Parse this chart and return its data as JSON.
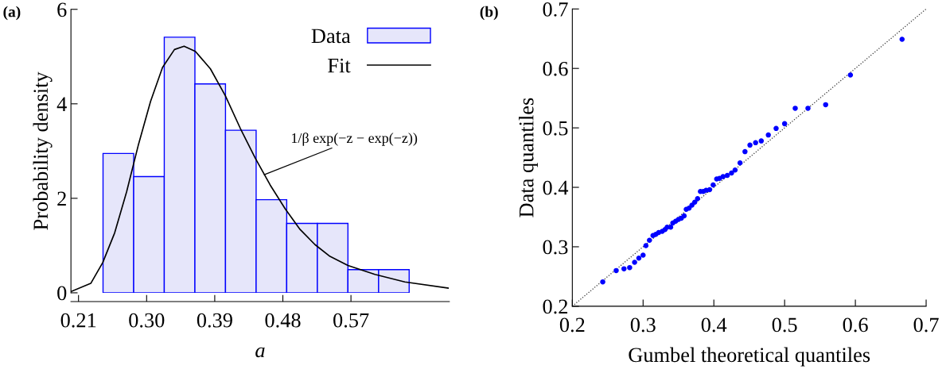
{
  "chart_data": [
    {
      "type": "histogram",
      "title": "(a)",
      "xlabel": "a",
      "ylabel": "Probability density",
      "xlim": [
        0.2,
        0.7
      ],
      "xticks": [
        0.21,
        {
          "value": 0.3,
          "label": "0.30"
        },
        0.39,
        0.48,
        0.57
      ],
      "ylim": [
        0,
        6
      ],
      "yticks": [
        0,
        2,
        4,
        6
      ],
      "legend": "top right",
      "grid": false,
      "series": [
        {
          "name": "Data",
          "color": "#e6e6fa",
          "bins": [
            0.2424,
            0.2829,
            0.3233,
            0.3638,
            0.4042,
            0.4447,
            0.4851,
            0.5256,
            0.566,
            0.6065,
            0.6469
          ],
          "values": [
            2.95,
            2.46,
            5.41,
            4.42,
            3.44,
            1.97,
            1.47,
            1.47,
            0.49,
            0.49
          ]
        },
        {
          "name": "Fit",
          "type": "line",
          "color": "#000000",
          "line_style": "solid",
          "marker": "none",
          "x": [
            0.2005,
            0.2262,
            0.242,
            0.2578,
            0.2736,
            0.2894,
            0.3052,
            0.321,
            0.3368,
            0.3495,
            0.3644,
            0.3843,
            0.404,
            0.4238,
            0.4436,
            0.4633,
            0.483,
            0.5028,
            0.5225,
            0.5423,
            0.566,
            0.6016,
            0.6411,
            0.6984
          ],
          "values": [
            0.03,
            0.2,
            0.64,
            1.27,
            2.14,
            3.15,
            4.05,
            4.77,
            5.15,
            5.22,
            5.11,
            4.74,
            4.17,
            3.48,
            2.85,
            2.28,
            1.78,
            1.34,
            1.02,
            0.77,
            0.58,
            0.39,
            0.23,
            0.1
          ]
        }
      ],
      "annotations": [
        {
          "text": "1/β exp(−z − exp(−z))",
          "x": 0.4554,
          "y": 2.5
        }
      ]
    },
    {
      "type": "scatter",
      "title": "(b)",
      "xlabel": "Gumbel theoretical quantiles",
      "ylabel": "Data quantiles",
      "xlim": [
        0.2,
        0.7
      ],
      "xticks": [
        0.2,
        0.3,
        0.4,
        0.5,
        0.6,
        0.7
      ],
      "ylim": [
        0.2,
        0.7
      ],
      "yticks": [
        0.2,
        0.3,
        0.4,
        0.5,
        0.6,
        0.7
      ],
      "legend": false,
      "grid": false,
      "series": [
        {
          "color": "#0000ff",
          "marker": "circle",
          "x": [
            0.243,
            0.262,
            0.273,
            0.281,
            0.288,
            0.294,
            0.3,
            0.304,
            0.309,
            0.314,
            0.318,
            0.322,
            0.327,
            0.331,
            0.334,
            0.339,
            0.342,
            0.346,
            0.35,
            0.354,
            0.358,
            0.361,
            0.365,
            0.369,
            0.373,
            0.377,
            0.381,
            0.385,
            0.389,
            0.394,
            0.399,
            0.404,
            0.408,
            0.413,
            0.419,
            0.425,
            0.43,
            0.437,
            0.444,
            0.451,
            0.459,
            0.467,
            0.477,
            0.488,
            0.5,
            0.515,
            0.533,
            0.558,
            0.593,
            0.666
          ],
          "values": [
            0.241,
            0.26,
            0.263,
            0.265,
            0.274,
            0.281,
            0.286,
            0.302,
            0.311,
            0.319,
            0.321,
            0.324,
            0.326,
            0.329,
            0.333,
            0.333,
            0.34,
            0.343,
            0.346,
            0.348,
            0.352,
            0.363,
            0.365,
            0.37,
            0.375,
            0.381,
            0.393,
            0.393,
            0.395,
            0.396,
            0.404,
            0.414,
            0.415,
            0.418,
            0.42,
            0.424,
            0.429,
            0.441,
            0.46,
            0.471,
            0.475,
            0.478,
            0.488,
            0.499,
            0.507,
            0.533,
            0.533,
            0.539,
            0.589,
            0.649
          ]
        },
        {
          "type": "line",
          "color": "#333333",
          "line_style": "dotted",
          "marker": "none",
          "x": [
            0.2,
            0.7
          ],
          "values": [
            0.2,
            0.7
          ]
        }
      ]
    }
  ]
}
